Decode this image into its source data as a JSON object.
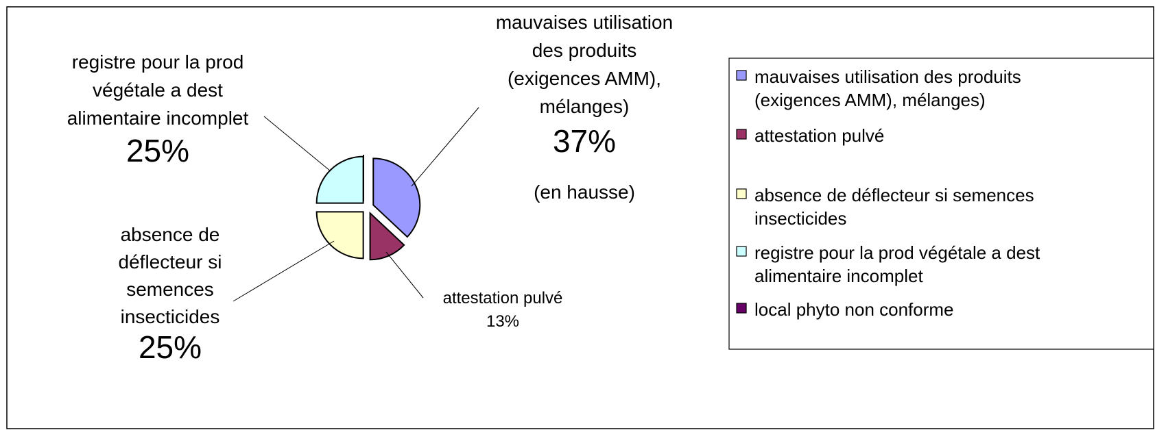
{
  "chart_data": {
    "type": "pie",
    "categories": [
      "mauvaises utilisation des produits (exigences AMM), mélanges)",
      "attestation pulvé",
      "absence de déflecteur si semences insecticides",
      "registre pour la prod végétale a dest alimentaire incomplet",
      "local phyto non conforme"
    ],
    "values": [
      37,
      13,
      25,
      25,
      0
    ],
    "value_labels": [
      "37%",
      "13%",
      "25%",
      "25%",
      null
    ],
    "colors": [
      "#9999ff",
      "#993366",
      "#ffffcc",
      "#ccffff",
      "#660066"
    ],
    "annotation": "(en hausse)",
    "legend": "right"
  }
}
